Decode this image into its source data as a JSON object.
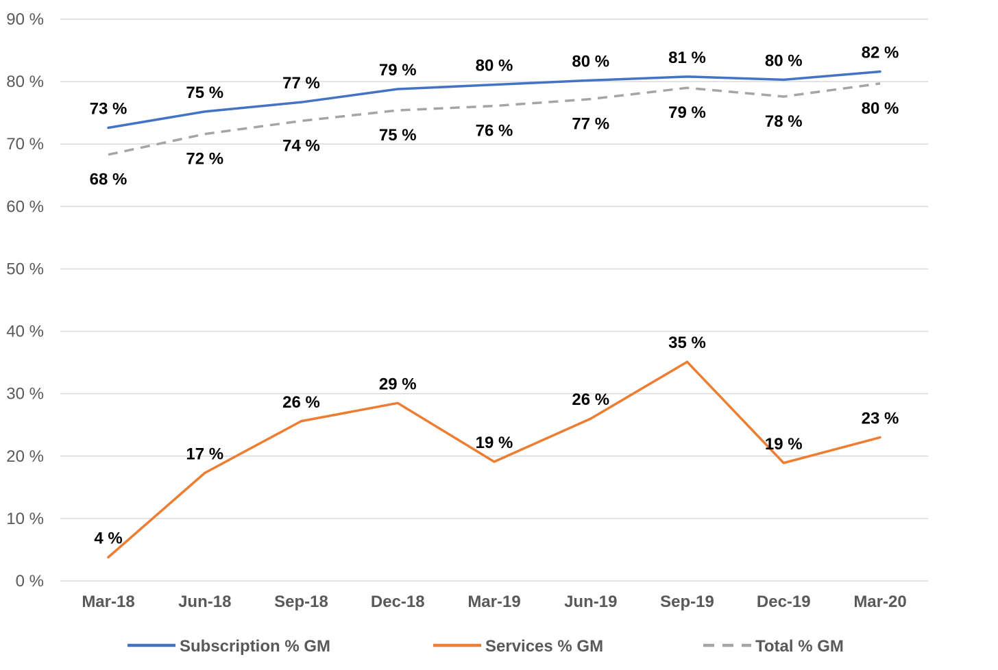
{
  "chart_data": {
    "type": "line",
    "categories": [
      "Mar-18",
      "Jun-18",
      "Sep-18",
      "Dec-18",
      "Mar-19",
      "Jun-19",
      "Sep-19",
      "Dec-19",
      "Mar-20"
    ],
    "ylim": [
      0,
      90
    ],
    "yticks": [
      0,
      10,
      20,
      30,
      40,
      50,
      60,
      70,
      80,
      90
    ],
    "ytick_labels": [
      "0 %",
      "10 %",
      "20 %",
      "30 %",
      "40 %",
      "50 %",
      "60 %",
      "70 %",
      "80 %",
      "90 %"
    ],
    "grid": true,
    "legend_position": "bottom",
    "series": [
      {
        "name": "Subscription % GM",
        "color": "#4472c4",
        "style": "solid",
        "values": [
          72.6,
          75.2,
          76.7,
          78.8,
          79.5,
          80.2,
          80.8,
          80.3,
          81.6
        ],
        "labels": [
          "73 %",
          "75 %",
          "77 %",
          "79 %",
          "80 %",
          "80 %",
          "81 %",
          "80 %",
          "82 %"
        ],
        "label_side": "above"
      },
      {
        "name": "Services % GM",
        "color": "#ed7d31",
        "style": "solid",
        "values": [
          3.8,
          17.3,
          25.6,
          28.5,
          19.1,
          26.0,
          35.1,
          18.9,
          23.0
        ],
        "labels": [
          "4 %",
          "17 %",
          "26 %",
          "29 %",
          "19 %",
          "26 %",
          "35 %",
          "19 %",
          "23 %"
        ],
        "label_side": "above"
      },
      {
        "name": "Total % GM",
        "color": "#a5a5a5",
        "style": "dashed",
        "values": [
          68.3,
          71.6,
          73.7,
          75.4,
          76.1,
          77.2,
          79.0,
          77.6,
          79.7
        ],
        "labels": [
          "68 %",
          "72 %",
          "74 %",
          "75 %",
          "76 %",
          "77 %",
          "79 %",
          "78 %",
          "80 %"
        ],
        "label_side": "below"
      }
    ]
  }
}
